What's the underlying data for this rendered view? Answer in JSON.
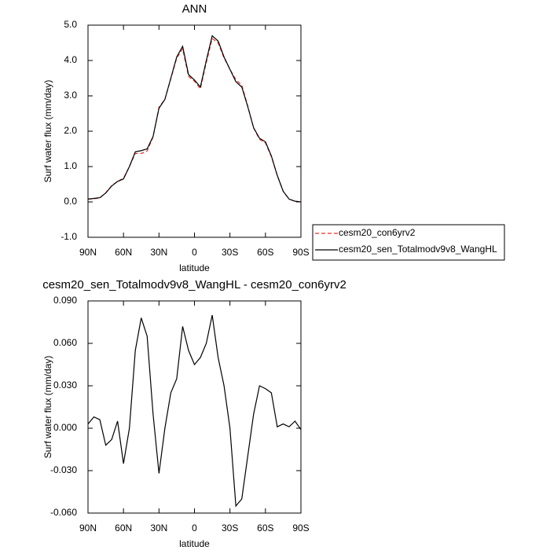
{
  "chart_data": [
    {
      "type": "line",
      "title": "ANN",
      "xlabel": "latitude",
      "ylabel": "Surf water flux (mm/day)",
      "x": [
        90,
        85,
        80,
        75,
        70,
        65,
        60,
        55,
        50,
        45,
        40,
        35,
        30,
        25,
        20,
        15,
        10,
        5,
        0,
        -5,
        -10,
        -15,
        -20,
        -25,
        -30,
        -35,
        -40,
        -45,
        -50,
        -55,
        -60,
        -65,
        -70,
        -75,
        -80,
        -85,
        -90
      ],
      "series": [
        {
          "name": "cesm20_con6yrv2",
          "color": "#e8322a",
          "line_style": "dashed",
          "values": [
            0.08,
            0.09,
            0.11,
            0.26,
            0.46,
            0.58,
            0.67,
            1.0,
            1.37,
            1.37,
            1.44,
            1.84,
            2.68,
            2.9,
            3.48,
            4.07,
            4.33,
            3.55,
            3.41,
            3.2,
            3.94,
            4.62,
            4.5,
            4.07,
            3.75,
            3.46,
            3.3,
            2.72,
            2.09,
            1.77,
            1.67,
            1.28,
            0.75,
            0.3,
            0.08,
            0.02,
            0.0
          ]
        },
        {
          "name": "cesm20_sen_Totalmodv9v8_WangHL",
          "color": "#000000",
          "line_style": "solid",
          "values": [
            0.08,
            0.1,
            0.12,
            0.25,
            0.45,
            0.58,
            0.65,
            1.0,
            1.42,
            1.45,
            1.5,
            1.85,
            2.65,
            2.9,
            3.5,
            4.1,
            4.4,
            3.6,
            3.45,
            3.25,
            4.0,
            4.7,
            4.55,
            4.1,
            3.75,
            3.4,
            3.25,
            2.7,
            2.1,
            1.8,
            1.7,
            1.3,
            0.75,
            0.3,
            0.08,
            0.02,
            0.0
          ]
        }
      ],
      "xlim": [
        90,
        -90
      ],
      "xticks": [
        {
          "value": 90,
          "label": "90N"
        },
        {
          "value": 60,
          "label": "60N"
        },
        {
          "value": 30,
          "label": "30N"
        },
        0,
        {
          "value": -30,
          "label": "30S"
        },
        {
          "value": -60,
          "label": "60S"
        },
        {
          "value": -90,
          "label": "90S"
        }
      ],
      "ylim": [
        -1,
        5
      ],
      "yticks": [
        {
          "value": -1,
          "label": "-1.0"
        },
        {
          "value": 0,
          "label": "0.0"
        },
        {
          "value": 1,
          "label": "1.0"
        },
        {
          "value": 2,
          "label": "2.0"
        },
        {
          "value": 3,
          "label": "3.0"
        },
        {
          "value": 4,
          "label": "4.0"
        },
        {
          "value": 5,
          "label": "5.0"
        }
      ],
      "legend": "right"
    },
    {
      "type": "line",
      "title": "cesm20_sen_Totalmodv9v8_WangHL - cesm20_con6yrv2",
      "xlabel": "latitude",
      "ylabel": "Surf water flux (mm/day)",
      "x": [
        90,
        85,
        80,
        75,
        70,
        65,
        60,
        55,
        50,
        45,
        40,
        35,
        30,
        25,
        20,
        15,
        10,
        5,
        0,
        -5,
        -10,
        -15,
        -20,
        -25,
        -30,
        -35,
        -40,
        -45,
        -50,
        -55,
        -60,
        -65,
        -70,
        -75,
        -80,
        -85,
        -90
      ],
      "color": "#000000",
      "values": [
        0.003,
        0.008,
        0.006,
        -0.012,
        -0.008,
        0.005,
        -0.025,
        0.0,
        0.055,
        0.078,
        0.065,
        0.01,
        -0.032,
        0.0,
        0.025,
        0.035,
        0.072,
        0.055,
        0.045,
        0.05,
        0.06,
        0.08,
        0.05,
        0.03,
        0.0,
        -0.055,
        -0.05,
        -0.02,
        0.01,
        0.03,
        0.028,
        0.025,
        0.001,
        0.003,
        0.001,
        0.005,
        -0.001
      ],
      "xlim": [
        90,
        -90
      ],
      "xticks": [
        {
          "value": 90,
          "label": "90N"
        },
        {
          "value": 60,
          "label": "60N"
        },
        {
          "value": 30,
          "label": "30N"
        },
        0,
        {
          "value": -30,
          "label": "30S"
        },
        {
          "value": -60,
          "label": "60S"
        },
        {
          "value": -90,
          "label": "90S"
        }
      ],
      "ylim": [
        -0.06,
        0.09
      ],
      "yticks": [
        {
          "value": -0.06,
          "label": "-0.060"
        },
        {
          "value": -0.03,
          "label": "-0.030"
        },
        {
          "value": 0,
          "label": "0.000"
        },
        {
          "value": 0.03,
          "label": "0.030"
        },
        {
          "value": 0.06,
          "label": "0.060"
        },
        {
          "value": 0.09,
          "label": "0.090"
        }
      ]
    }
  ]
}
